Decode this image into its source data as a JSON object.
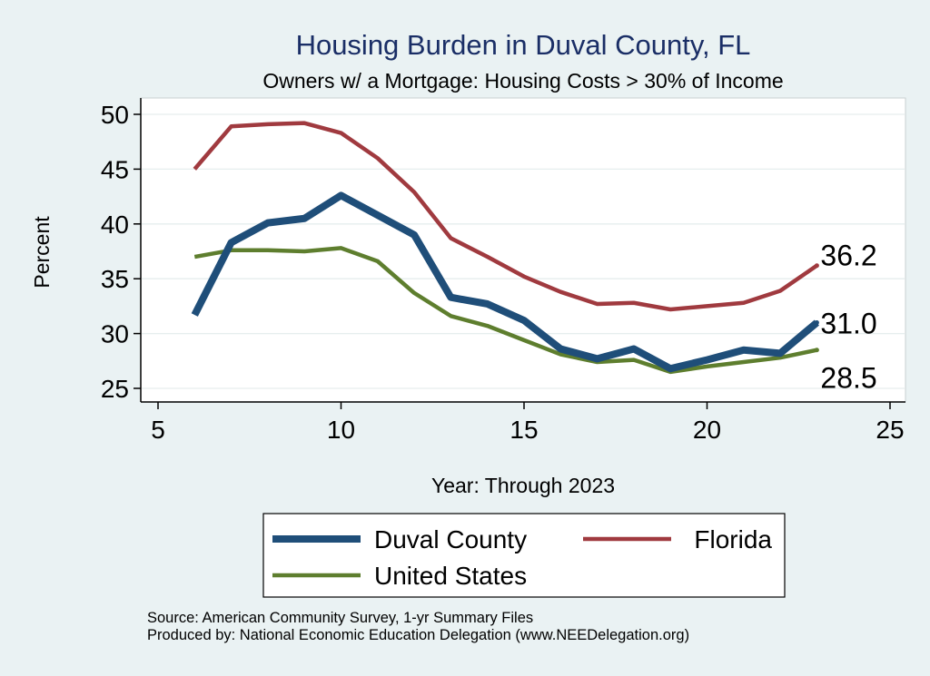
{
  "chart_data": {
    "type": "line",
    "title": "Housing Burden in Duval County, FL",
    "subtitle": "Owners w/ a Mortgage: Housing Costs > 30% of Income",
    "xlabel": "Year: Through 2023",
    "ylabel": "Percent",
    "xlim": [
      5,
      25
    ],
    "ylim": [
      25,
      50
    ],
    "xticks": [
      "5",
      "10",
      "15",
      "20",
      "25"
    ],
    "yticks": [
      "25",
      "30",
      "35",
      "40",
      "45",
      "50"
    ],
    "grid": true,
    "legend_position": "bottom",
    "x": [
      6,
      7,
      8,
      9,
      10,
      11,
      12,
      13,
      14,
      15,
      16,
      17,
      18,
      19,
      20,
      21,
      22,
      23
    ],
    "series": [
      {
        "name": "Duval County",
        "color": "#1f4e79",
        "values": [
          31.7,
          38.3,
          40.1,
          40.5,
          42.6,
          40.8,
          39.0,
          33.3,
          32.7,
          31.2,
          28.6,
          27.7,
          28.6,
          26.8,
          27.6,
          28.5,
          28.2,
          31.0
        ],
        "end_label": "31.0"
      },
      {
        "name": "Florida",
        "color": "#a03a3f",
        "values": [
          45.0,
          48.9,
          49.1,
          49.2,
          48.3,
          46.0,
          42.9,
          38.7,
          37.0,
          35.2,
          33.8,
          32.7,
          32.8,
          32.2,
          32.5,
          32.8,
          33.9,
          36.2
        ],
        "end_label": "36.2"
      },
      {
        "name": "United States",
        "color": "#5e7e2e",
        "values": [
          37.0,
          37.6,
          37.6,
          37.5,
          37.8,
          36.6,
          33.7,
          31.6,
          30.7,
          29.4,
          28.1,
          27.4,
          27.6,
          26.5,
          27.0,
          27.4,
          27.8,
          28.5
        ],
        "end_label": "28.5"
      }
    ]
  },
  "footer": {
    "source": "Source: American Community Survey, 1-yr Summary Files",
    "produced": "Produced by: National Economic Education Delegation (www.NEEDelegation.org)"
  }
}
